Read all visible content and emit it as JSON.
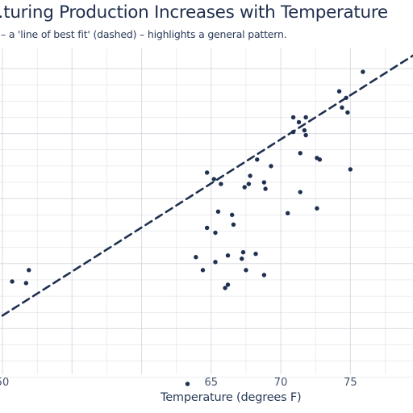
{
  "chart_data": {
    "type": "scatter",
    "title": "…turing Production Increases with Temperature",
    "subtitle": "– a 'line of best fit' (dashed) – highlights a general pattern.",
    "xlabel": "Temperature (degrees F)",
    "ylabel": "",
    "xlim": [
      50,
      79.5
    ],
    "ylim": [
      0,
      10
    ],
    "x_ticks": [
      50,
      65,
      70,
      75
    ],
    "x_tick_labels": [
      "50",
      "65",
      "70",
      "75"
    ],
    "grid": true,
    "point_color": "#1f3050",
    "trend_color": "#1f3050",
    "grid_color": "#d8dbe2",
    "points": [
      [
        50.7,
        3.45
      ],
      [
        51.7,
        3.4
      ],
      [
        51.9,
        3.8
      ],
      [
        63.3,
        0.3
      ],
      [
        63.9,
        4.2
      ],
      [
        64.4,
        3.8
      ],
      [
        64.7,
        6.8
      ],
      [
        64.7,
        5.1
      ],
      [
        65.2,
        6.6
      ],
      [
        65.3,
        4.95
      ],
      [
        65.3,
        4.05
      ],
      [
        65.5,
        5.6
      ],
      [
        65.7,
        6.45
      ],
      [
        66.0,
        3.25
      ],
      [
        66.2,
        3.35
      ],
      [
        66.2,
        4.25
      ],
      [
        66.5,
        5.5
      ],
      [
        66.6,
        5.2
      ],
      [
        67.2,
        4.15
      ],
      [
        67.3,
        4.35
      ],
      [
        67.4,
        6.35
      ],
      [
        67.5,
        3.8
      ],
      [
        67.7,
        6.45
      ],
      [
        67.8,
        6.7
      ],
      [
        68.2,
        4.3
      ],
      [
        68.3,
        7.2
      ],
      [
        68.8,
        3.65
      ],
      [
        68.8,
        6.5
      ],
      [
        68.9,
        6.3
      ],
      [
        69.3,
        7.0
      ],
      [
        70.5,
        5.55
      ],
      [
        70.9,
        8.05
      ],
      [
        70.9,
        8.5
      ],
      [
        71.3,
        8.35
      ],
      [
        71.4,
        6.2
      ],
      [
        71.4,
        7.4
      ],
      [
        71.7,
        8.1
      ],
      [
        71.8,
        8.5
      ],
      [
        71.8,
        7.95
      ],
      [
        72.6,
        7.25
      ],
      [
        72.6,
        5.7
      ],
      [
        72.8,
        7.2
      ],
      [
        74.2,
        9.3
      ],
      [
        74.4,
        8.8
      ],
      [
        74.7,
        9.1
      ],
      [
        74.8,
        8.65
      ],
      [
        75.0,
        6.9
      ],
      [
        75.9,
        9.9
      ]
    ],
    "trend_line": {
      "x": [
        50,
        79.5
      ],
      "y": [
        2.4,
        10.4
      ]
    }
  }
}
